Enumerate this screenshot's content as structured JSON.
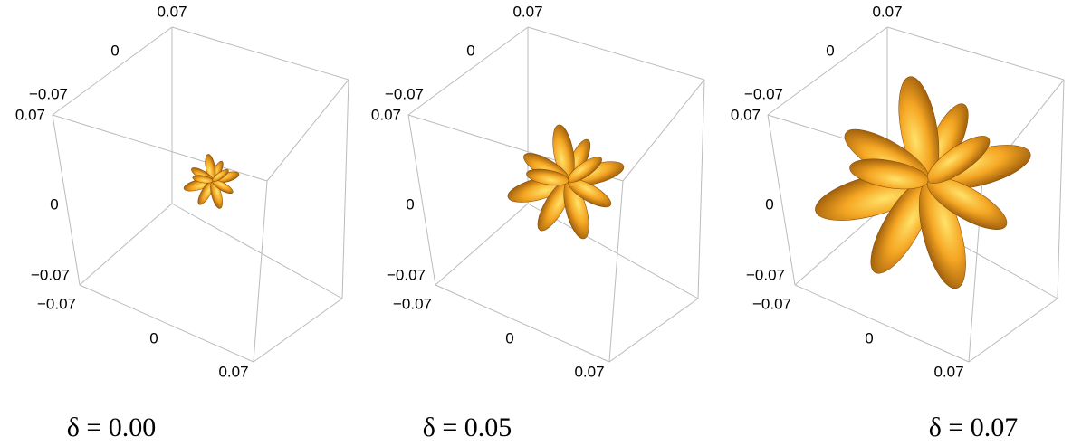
{
  "panels": [
    {
      "axes": {
        "top": [
          "0.07",
          "0",
          "−0.07"
        ],
        "left": [
          "0.07",
          "0",
          "−0.07"
        ],
        "bottom": [
          "−0.07",
          "0",
          "0.07"
        ]
      },
      "caption": "δ = 0.00"
    },
    {
      "axes": {
        "top": [
          "0.07",
          "0",
          "−0.07"
        ],
        "left": [
          "0.07",
          "0",
          "−0.07"
        ],
        "bottom": [
          "−0.07",
          "0",
          "0.07"
        ]
      },
      "caption": "δ = 0.05"
    },
    {
      "axes": {
        "top": [
          "0.07",
          "0",
          "−0.07"
        ],
        "left": [
          "0.07",
          "0",
          "−0.07"
        ],
        "bottom": [
          "−0.07",
          "0",
          "0.07"
        ]
      },
      "caption": "δ = 0.07"
    }
  ]
}
